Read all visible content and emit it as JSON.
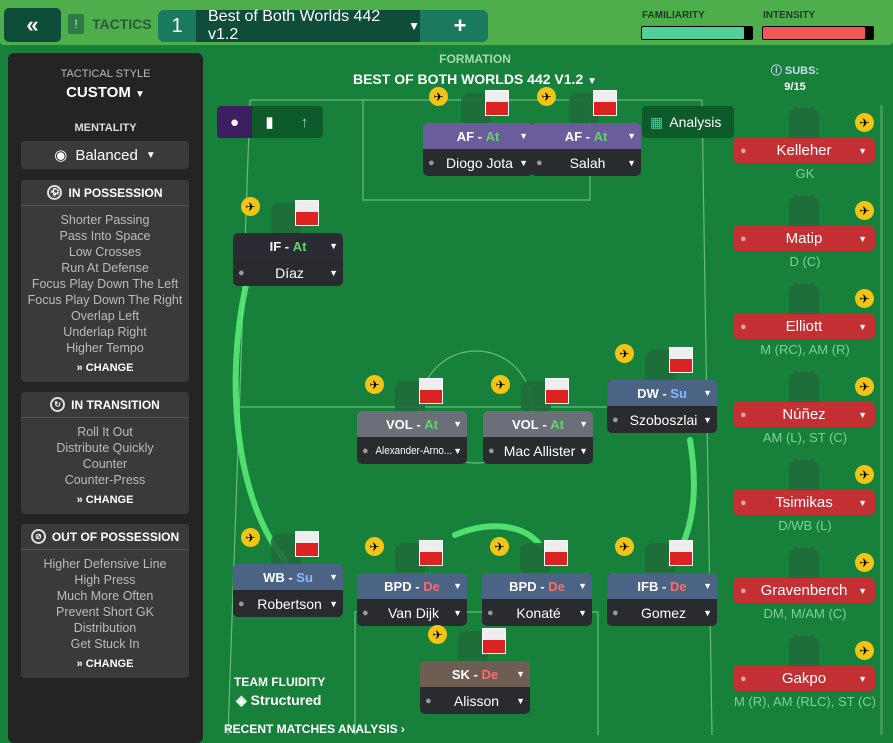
{
  "topbar": {
    "back_icon": "double-chevron-left",
    "tactics_label": "TACTICS",
    "tab_number": "1",
    "tab_name": "Best of Both Worlds 442 v1.2",
    "add_label": "+",
    "familiarity_label": "FAMILIARITY",
    "familiarity_value": 0.93,
    "intensity_label": "INTENSITY",
    "intensity_value": 0.93,
    "colors": {
      "familiarity": "#4fd19c",
      "intensity": "#f25757"
    }
  },
  "left": {
    "tactical_style_label": "TACTICAL STYLE",
    "tactical_style": "CUSTOM",
    "mentality_label": "MENTALITY",
    "mentality": "Balanced",
    "sections": [
      {
        "title": "IN POSSESSION",
        "items": [
          "Shorter Passing",
          "Pass Into Space",
          "Low Crosses",
          "Run At Defense",
          "Focus Play Down The Left",
          "Focus Play Down The Right",
          "Overlap Left",
          "Underlap Right",
          "Higher Tempo"
        ],
        "change": "CHANGE"
      },
      {
        "title": "IN TRANSITION",
        "items": [
          "Roll It Out",
          "Distribute Quickly",
          "Counter",
          "Counter-Press"
        ],
        "change": "CHANGE"
      },
      {
        "title": "OUT OF POSSESSION",
        "items": [
          "Higher Defensive Line",
          "High Press",
          "Much More Often",
          "Prevent Short GK",
          "Distribution",
          "Get Stuck In"
        ],
        "change": "CHANGE"
      }
    ]
  },
  "formation": {
    "label": "FORMATION",
    "name": "BEST OF BOTH WORLDS 442 V1.2",
    "analysis": "Analysis"
  },
  "players": [
    {
      "role": "AF",
      "duty": "At",
      "name": "Diogo Jota",
      "type": "att"
    },
    {
      "role": "AF",
      "duty": "At",
      "name": "Salah",
      "type": "att"
    },
    {
      "role": "IF",
      "duty": "At",
      "name": "Díaz",
      "type": "if"
    },
    {
      "role": "DW",
      "duty": "Su",
      "name": "Szoboszlai",
      "type": "blue"
    },
    {
      "role": "VOL",
      "duty": "At",
      "name": "Alexander-Arno...",
      "type": "mid"
    },
    {
      "role": "VOL",
      "duty": "At",
      "name": "Mac Allister",
      "type": "mid"
    },
    {
      "role": "WB",
      "duty": "Su",
      "name": "Robertson",
      "type": "blue"
    },
    {
      "role": "BPD",
      "duty": "De",
      "name": "Van Dijk",
      "type": "blue"
    },
    {
      "role": "BPD",
      "duty": "De",
      "name": "Konaté",
      "type": "blue"
    },
    {
      "role": "IFB",
      "duty": "De",
      "name": "Gomez",
      "type": "blue"
    },
    {
      "role": "SK",
      "duty": "De",
      "name": "Alisson",
      "type": "gk"
    }
  ],
  "subs": {
    "label": "SUBS:",
    "count": "9/15",
    "list": [
      {
        "name": "Kelleher",
        "pos": "GK"
      },
      {
        "name": "Matip",
        "pos": "D (C)"
      },
      {
        "name": "Elliott",
        "pos": "M (RC), AM (R)"
      },
      {
        "name": "Núñez",
        "pos": "AM (L), ST (C)"
      },
      {
        "name": "Tsimikas",
        "pos": "D/WB (L)"
      },
      {
        "name": "Gravenberch",
        "pos": "DM, M/AM (C)"
      },
      {
        "name": "Gakpo",
        "pos": "M (R), AM (RLC), ST (C)"
      }
    ]
  },
  "fluidity": {
    "label": "TEAM FLUIDITY",
    "value": "Structured"
  },
  "recent": "RECENT MATCHES ANALYSIS ›"
}
